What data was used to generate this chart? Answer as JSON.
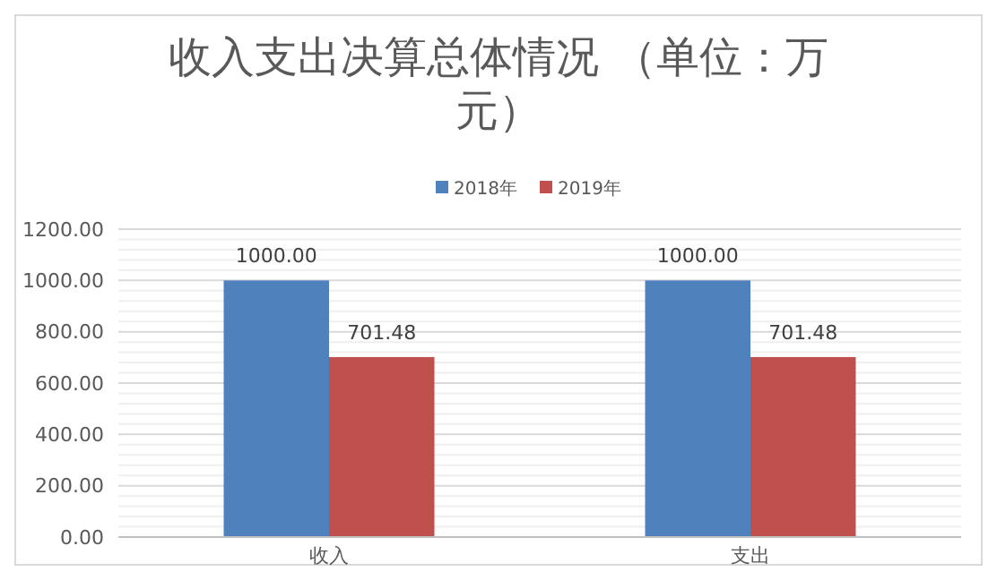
{
  "chart_data": {
    "type": "bar",
    "title": "收入支出决算总体情况 （单位：万元）",
    "categories": [
      "收入",
      "支出"
    ],
    "series": [
      {
        "name": "2018年",
        "color": "#4f81bd",
        "values": [
          1000,
          1000
        ],
        "value_labels": [
          "1000.00",
          "1000.00"
        ]
      },
      {
        "name": "2019年",
        "color": "#c0504d",
        "values": [
          701.48,
          701.48
        ],
        "value_labels": [
          "701.48",
          "701.48"
        ]
      }
    ],
    "ylim": [
      0,
      1200
    ],
    "yticks": [
      {
        "value": 0,
        "label": "0.00"
      },
      {
        "value": 40,
        "label": null
      },
      {
        "value": 80,
        "label": null
      },
      {
        "value": 120,
        "label": null
      },
      {
        "value": 160,
        "label": null
      },
      {
        "value": 200,
        "label": "200.00"
      },
      {
        "value": 240,
        "label": null
      },
      {
        "value": 280,
        "label": null
      },
      {
        "value": 320,
        "label": null
      },
      {
        "value": 360,
        "label": null
      },
      {
        "value": 400,
        "label": "400.00"
      },
      {
        "value": 440,
        "label": null
      },
      {
        "value": 480,
        "label": null
      },
      {
        "value": 520,
        "label": null
      },
      {
        "value": 560,
        "label": null
      },
      {
        "value": 600,
        "label": "600.00"
      },
      {
        "value": 640,
        "label": null
      },
      {
        "value": 680,
        "label": null
      },
      {
        "value": 720,
        "label": null
      },
      {
        "value": 760,
        "label": null
      },
      {
        "value": 800,
        "label": "800.00"
      },
      {
        "value": 840,
        "label": null
      },
      {
        "value": 880,
        "label": null
      },
      {
        "value": 920,
        "label": null
      },
      {
        "value": 960,
        "label": null
      },
      {
        "value": 1000,
        "label": "1000.00"
      },
      {
        "value": 1040,
        "label": null
      },
      {
        "value": 1080,
        "label": null
      },
      {
        "value": 1120,
        "label": null
      },
      {
        "value": 1160,
        "label": null
      },
      {
        "value": 1200,
        "label": "1200.00"
      }
    ],
    "grid": true,
    "legend": "top"
  }
}
